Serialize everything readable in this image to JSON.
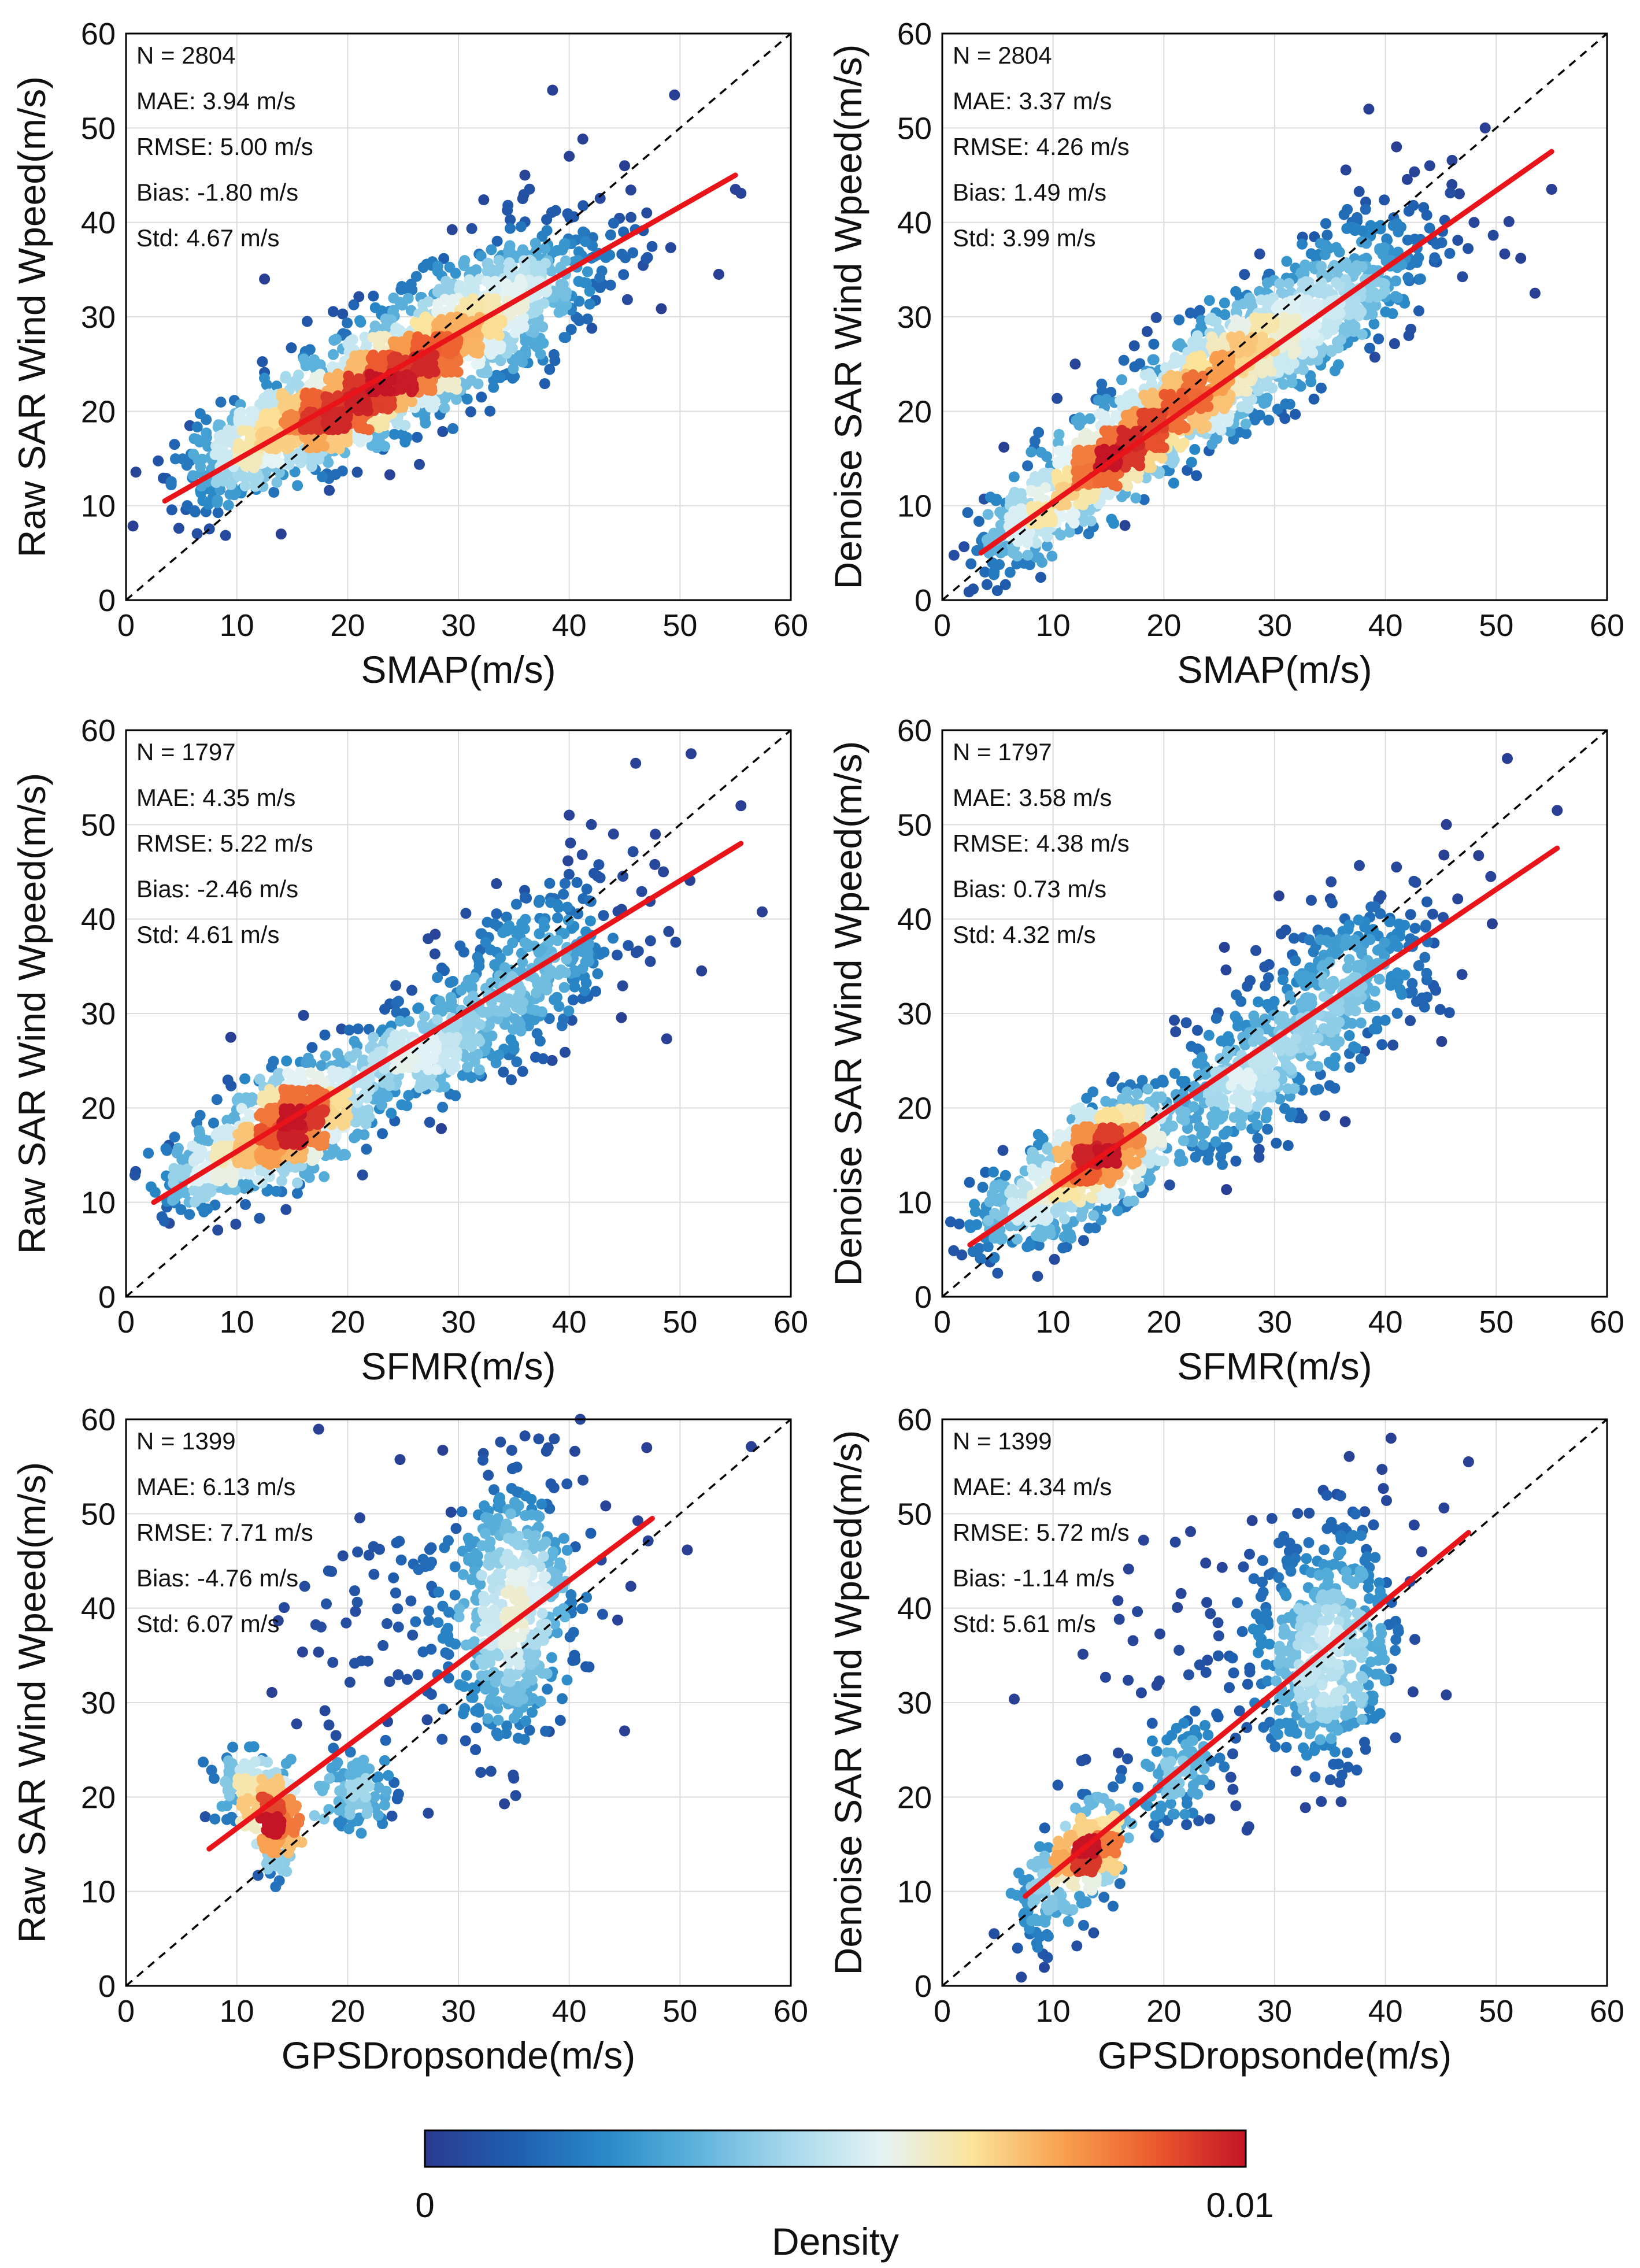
{
  "figure": {
    "colormap": [
      "#2b3a8f",
      "#1f5fb0",
      "#2a8ac8",
      "#5fb4dc",
      "#a6d9ec",
      "#e4f3f5",
      "#fbe39a",
      "#f8a04e",
      "#ec5a2e",
      "#c41426"
    ],
    "fit_color": "#e8141a",
    "colorbar": {
      "label": "Density",
      "min_label": "0",
      "max_label": "0.01"
    }
  },
  "chart_data": [
    {
      "type": "scatter",
      "id": "raw-smap",
      "xlabel": "SMAP(m/s)",
      "ylabel": "Raw SAR Wind Wpeed(m/s)",
      "xlim": [
        0,
        60
      ],
      "ylim": [
        0,
        60
      ],
      "xticks": [
        "0",
        "10",
        "20",
        "30",
        "40",
        "50",
        "60"
      ],
      "yticks": [
        "0",
        "10",
        "20",
        "30",
        "40",
        "50",
        "60"
      ],
      "stats": [
        "N = 2804",
        "MAE: 3.94 m/s",
        "RMSE: 5.00 m/s",
        "Bias: -1.80 m/s",
        "Std: 4.67 m/s"
      ],
      "fit": {
        "x": [
          3.5,
          55
        ],
        "y": [
          10.5,
          45
        ]
      },
      "one_to_one": true,
      "clusters": [
        {
          "cx": 18,
          "cy": 19.5,
          "sx": 4.5,
          "sy": 3.2,
          "rho": 0.6,
          "n": 450
        },
        {
          "cx": 26,
          "cy": 25,
          "sx": 6.5,
          "sy": 4.5,
          "rho": 0.7,
          "n": 800
        },
        {
          "cx": 34,
          "cy": 32,
          "sx": 6,
          "sy": 5,
          "rho": 0.6,
          "n": 400
        },
        {
          "cx": 10,
          "cy": 15,
          "sx": 3,
          "sy": 3,
          "rho": 0.5,
          "n": 180
        }
      ],
      "outliers": [
        [
          38.5,
          54
        ],
        [
          49.5,
          53.5
        ],
        [
          53.5,
          34.5
        ],
        [
          55,
          43.5
        ],
        [
          12.5,
          34
        ],
        [
          14,
          7
        ],
        [
          45,
          46
        ],
        [
          47,
          41
        ],
        [
          40,
          47
        ],
        [
          36,
          45
        ]
      ]
    },
    {
      "type": "scatter",
      "id": "denoise-smap",
      "xlabel": "SMAP(m/s)",
      "ylabel": "Denoise SAR Wind Wpeed(m/s)",
      "xlim": [
        0,
        60
      ],
      "ylim": [
        0,
        60
      ],
      "xticks": [
        "0",
        "10",
        "20",
        "30",
        "40",
        "50",
        "60"
      ],
      "yticks": [
        "0",
        "10",
        "20",
        "30",
        "40",
        "50",
        "60"
      ],
      "stats": [
        "N = 2804",
        "MAE: 3.37 m/s",
        "RMSE: 4.26 m/s",
        "Bias: 1.49 m/s",
        "Std: 3.99 m/s"
      ],
      "fit": {
        "x": [
          3.5,
          55
        ],
        "y": [
          5,
          47.5
        ]
      },
      "one_to_one": true,
      "clusters": [
        {
          "cx": 15,
          "cy": 15,
          "sx": 4,
          "sy": 3.5,
          "rho": 0.75,
          "n": 450
        },
        {
          "cx": 24,
          "cy": 23,
          "sx": 6.5,
          "sy": 5.5,
          "rho": 0.8,
          "n": 800
        },
        {
          "cx": 34,
          "cy": 31,
          "sx": 6,
          "sy": 5.5,
          "rho": 0.65,
          "n": 400
        },
        {
          "cx": 8,
          "cy": 8,
          "sx": 3,
          "sy": 3,
          "rho": 0.6,
          "n": 180
        }
      ],
      "outliers": [
        [
          38.5,
          52
        ],
        [
          49,
          50
        ],
        [
          53.5,
          32.5
        ],
        [
          55,
          43.5
        ],
        [
          44,
          46
        ],
        [
          46,
          44
        ],
        [
          48,
          40
        ],
        [
          41,
          48
        ],
        [
          9,
          4
        ],
        [
          12,
          25
        ]
      ]
    },
    {
      "type": "scatter",
      "id": "raw-sfmr",
      "xlabel": "SFMR(m/s)",
      "ylabel": "Raw SAR Wind Wpeed(m/s)",
      "xlim": [
        0,
        60
      ],
      "ylim": [
        0,
        60
      ],
      "xticks": [
        "0",
        "10",
        "20",
        "30",
        "40",
        "50",
        "60"
      ],
      "yticks": [
        "0",
        "10",
        "20",
        "30",
        "40",
        "50",
        "60"
      ],
      "stats": [
        "N = 1797",
        "MAE: 4.35 m/s",
        "RMSE: 5.22 m/s",
        "Bias: -2.46 m/s",
        "Std: 4.61 m/s"
      ],
      "fit": {
        "x": [
          2.5,
          55.5
        ],
        "y": [
          10,
          48
        ]
      },
      "one_to_one": true,
      "clusters": [
        {
          "cx": 15,
          "cy": 18.5,
          "sx": 2.8,
          "sy": 3.2,
          "rho": 0.3,
          "n": 500
        },
        {
          "cx": 8,
          "cy": 14,
          "sx": 3,
          "sy": 2.5,
          "rho": 0.4,
          "n": 220
        },
        {
          "cx": 26,
          "cy": 25,
          "sx": 4,
          "sy": 3,
          "rho": 0.5,
          "n": 300
        },
        {
          "cx": 36,
          "cy": 34,
          "sx": 5,
          "sy": 5,
          "rho": 0.5,
          "n": 350
        }
      ],
      "outliers": [
        [
          46,
          56.5
        ],
        [
          51,
          57.5
        ],
        [
          55.5,
          52
        ],
        [
          48.5,
          45
        ],
        [
          44,
          49
        ],
        [
          40,
          51
        ],
        [
          42,
          50
        ]
      ]
    },
    {
      "type": "scatter",
      "id": "denoise-sfmr",
      "xlabel": "SFMR(m/s)",
      "ylabel": "Denoise SAR Wind Wpeed(m/s)",
      "xlim": [
        0,
        60
      ],
      "ylim": [
        0,
        60
      ],
      "xticks": [
        "0",
        "10",
        "20",
        "30",
        "40",
        "50",
        "60"
      ],
      "yticks": [
        "0",
        "10",
        "20",
        "30",
        "40",
        "50",
        "60"
      ],
      "stats": [
        "N = 1797",
        "MAE: 3.58 m/s",
        "RMSE: 4.38 m/s",
        "Bias: 0.73 m/s",
        "Std: 4.32 m/s"
      ],
      "fit": {
        "x": [
          2.5,
          55.5
        ],
        "y": [
          5.5,
          47.5
        ]
      },
      "one_to_one": true,
      "clusters": [
        {
          "cx": 15,
          "cy": 15.5,
          "sx": 2.8,
          "sy": 3,
          "rho": 0.4,
          "n": 500
        },
        {
          "cx": 8,
          "cy": 10,
          "sx": 3,
          "sy": 3,
          "rho": 0.4,
          "n": 220
        },
        {
          "cx": 27,
          "cy": 22,
          "sx": 4,
          "sy": 3.5,
          "rho": 0.5,
          "n": 300
        },
        {
          "cx": 36,
          "cy": 33,
          "sx": 5,
          "sy": 5,
          "rho": 0.5,
          "n": 350
        }
      ],
      "outliers": [
        [
          51,
          57
        ],
        [
          55.5,
          51.5
        ],
        [
          45.5,
          50
        ],
        [
          49.5,
          44.5
        ],
        [
          41,
          45.5
        ],
        [
          5,
          2.5
        ]
      ]
    },
    {
      "type": "scatter",
      "id": "raw-gps",
      "xlabel": "GPSDropsonde(m/s)",
      "ylabel": "Raw SAR Wind Wpeed(m/s)",
      "xlim": [
        0,
        60
      ],
      "ylim": [
        0,
        60
      ],
      "xticks": [
        "0",
        "10",
        "20",
        "30",
        "40",
        "50",
        "60"
      ],
      "yticks": [
        "0",
        "10",
        "20",
        "30",
        "40",
        "50",
        "60"
      ],
      "stats": [
        "N = 1399",
        "MAE: 6.13 m/s",
        "RMSE: 7.71 m/s",
        "Bias: -4.76 m/s",
        "Std: 6.07 m/s"
      ],
      "fit": {
        "x": [
          7.5,
          47.5
        ],
        "y": [
          14.5,
          49.5
        ]
      },
      "one_to_one": true,
      "clusters": [
        {
          "cx": 13.8,
          "cy": 16.5,
          "sx": 0.9,
          "sy": 2.2,
          "rho": 0.1,
          "n": 200
        },
        {
          "cx": 11,
          "cy": 21,
          "sx": 1.8,
          "sy": 1.8,
          "rho": 0.0,
          "n": 110
        },
        {
          "cx": 21,
          "cy": 20.5,
          "sx": 1.6,
          "sy": 2.0,
          "rho": 0.1,
          "n": 90
        },
        {
          "cx": 35,
          "cy": 40,
          "sx": 2.5,
          "sy": 7,
          "rho": 0.1,
          "n": 400
        },
        {
          "cx": 30,
          "cy": 40,
          "sx": 8,
          "sy": 8,
          "rho": 0.3,
          "n": 180
        }
      ],
      "outliers": [
        [
          41,
          60
        ],
        [
          47,
          57
        ],
        [
          35,
          22
        ],
        [
          13.5,
          10.5
        ],
        [
          38,
          51
        ],
        [
          45,
          27
        ]
      ]
    },
    {
      "type": "scatter",
      "id": "denoise-gps",
      "xlabel": "GPSDropsonde(m/s)",
      "ylabel": "Denoise SAR Wind Wpeed(m/s)",
      "xlim": [
        0,
        60
      ],
      "ylim": [
        0,
        60
      ],
      "xticks": [
        "0",
        "10",
        "20",
        "30",
        "40",
        "50",
        "60"
      ],
      "yticks": [
        "0",
        "10",
        "20",
        "30",
        "40",
        "50",
        "60"
      ],
      "stats": [
        "N = 1399",
        "MAE: 4.34 m/s",
        "RMSE: 5.72 m/s",
        "Bias: -1.14 m/s",
        "Std: 5.61 m/s"
      ],
      "fit": {
        "x": [
          7.5,
          47.5
        ],
        "y": [
          9.5,
          48
        ]
      },
      "one_to_one": true,
      "clusters": [
        {
          "cx": 13.5,
          "cy": 14.5,
          "sx": 1.3,
          "sy": 2.3,
          "rho": 0.1,
          "n": 230
        },
        {
          "cx": 9.5,
          "cy": 10,
          "sx": 1.8,
          "sy": 3,
          "rho": 0.3,
          "n": 110
        },
        {
          "cx": 21,
          "cy": 22,
          "sx": 2,
          "sy": 3,
          "rho": 0.4,
          "n": 110
        },
        {
          "cx": 35,
          "cy": 36,
          "sx": 2.5,
          "sy": 6.5,
          "rho": 0.1,
          "n": 380
        },
        {
          "cx": 30,
          "cy": 36,
          "sx": 8,
          "sy": 8,
          "rho": 0.3,
          "n": 150
        }
      ],
      "outliers": [
        [
          40.5,
          58
        ],
        [
          47.5,
          55.5
        ],
        [
          36,
          19.5
        ],
        [
          27.5,
          16.5
        ],
        [
          9.5,
          3
        ]
      ]
    }
  ]
}
